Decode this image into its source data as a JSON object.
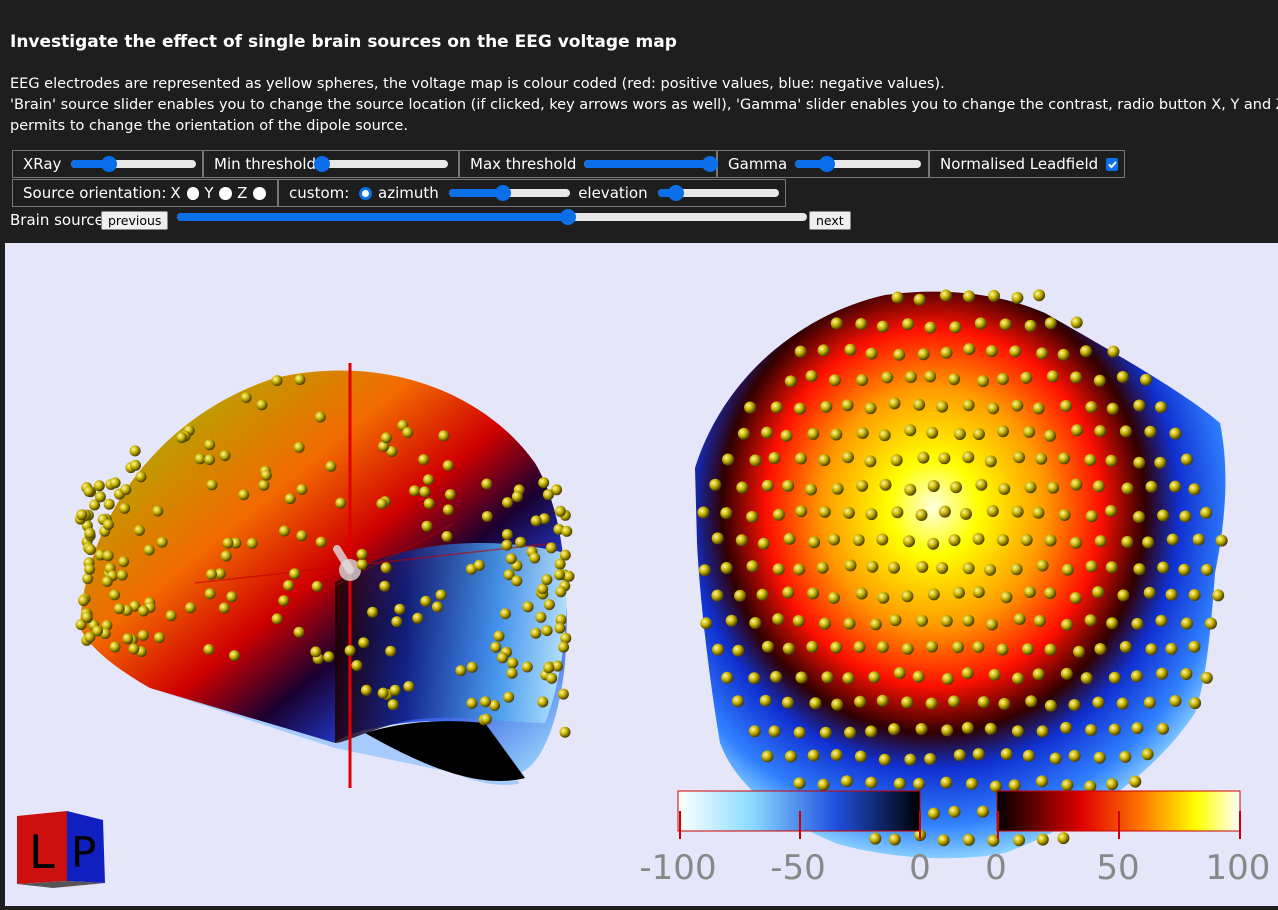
{
  "header": {
    "title": "Investigate the effect of single brain sources on the EEG voltage map",
    "description_lines": [
      "EEG electrodes are represented as yellow spheres, the voltage map is colour coded (red: positive values, blue: negative values).",
      "'Brain' source slider enables you to change the source location (if clicked, key arrows wors as well), 'Gamma' slider enables you to change the contrast, radio button X, Y and Z",
      "permits to change the orientation of the dipole source."
    ]
  },
  "controls": {
    "xray": {
      "label": "XRay",
      "value": 0.3
    },
    "min_threshold": {
      "label": "Min threshold",
      "value": 0.0
    },
    "max_threshold": {
      "label": "Max threshold",
      "value": 1.0
    },
    "gamma": {
      "label": "Gamma",
      "value": 0.25
    },
    "normalised": {
      "label": "Normalised Leadfield",
      "checked": true
    },
    "orientation": {
      "label": "Source orientation:",
      "options": [
        "X",
        "Y",
        "Z"
      ],
      "custom_label": "custom:",
      "azimuth_label": "azimuth",
      "azimuth_value": 0.45,
      "elevation_label": "elevation",
      "elevation_value": 0.15,
      "selected": "azimuth"
    },
    "brain_source": {
      "label": "Brain source",
      "previous": "previous",
      "next": "next",
      "value": 0.62
    }
  },
  "colorbar": {
    "negative_ticks": [
      "-100",
      "-50",
      "0"
    ],
    "positive_ticks": [
      "0",
      "50",
      "100"
    ]
  },
  "orientation_cube": {
    "left_face": "L",
    "right_face": "P"
  },
  "colors": {
    "accent": "#0a6fe8",
    "background": "#1e1e1e",
    "viewer_bg": "#e6e6fa",
    "electrode": "#c8b400"
  }
}
